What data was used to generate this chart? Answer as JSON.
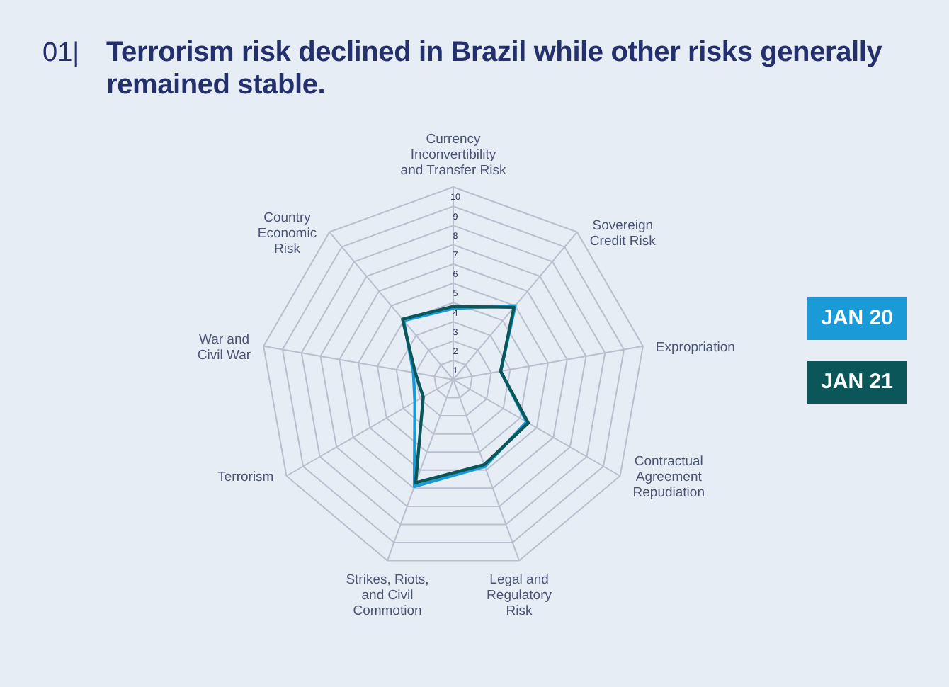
{
  "chart_data": {
    "type": "radar",
    "title": "Terrorism risk declined in Brazil while other risks generally remained stable.",
    "annotations": [
      "01|"
    ],
    "categories": [
      "Currency\nInconvertibility\nand Transfer Risk",
      "Sovereign\nCredit Risk",
      "Expropriation",
      "Contractual\nAgreement\nRepudiation",
      "Legal and\nRegulatory\nRisk",
      "Strikes, Riots,\nand Civil\nCommotion",
      "Terrorism",
      "War and\nCivil War",
      "Country\nEconomic\nRisk"
    ],
    "series": [
      {
        "name": "JAN 20",
        "color": "#1a9bd7",
        "values": [
          3.7,
          5.0,
          2.5,
          4.4,
          4.8,
          5.9,
          2.3,
          2.1,
          4.0
        ]
      },
      {
        "name": "JAN 21",
        "color": "#0b5659",
        "values": [
          3.8,
          4.9,
          2.5,
          4.5,
          4.7,
          5.7,
          1.8,
          2.0,
          4.1
        ]
      }
    ],
    "ylim": [
      0,
      10
    ],
    "yticks": [
      1,
      2,
      3,
      4,
      5,
      6,
      7,
      8,
      9,
      10
    ],
    "grid": true,
    "legend": "right"
  }
}
